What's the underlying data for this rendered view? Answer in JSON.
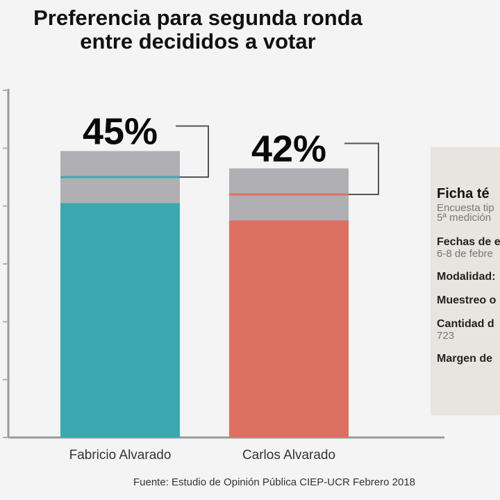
{
  "title_line1": "Preferencia para segunda ronda",
  "title_line2": "entre decididos a votar",
  "chart_data": {
    "type": "bar",
    "title": "Preferencia para segunda ronda entre decididos a votar",
    "categories": [
      "Fabricio Alvarado",
      "Carlos Alvarado"
    ],
    "values": [
      45,
      42
    ],
    "value_labels": [
      "45%",
      "42%"
    ],
    "ylim": [
      0,
      60
    ],
    "y_ticks": [
      0,
      10,
      20,
      30,
      40,
      50,
      60
    ],
    "show_tick_labels": false,
    "grid": false,
    "colors": {
      "Fabricio Alvarado": "#3aa9b0",
      "Carlos Alvarado": "#de7061",
      "error_band": "#b0b0b4",
      "bracket": "#555555"
    },
    "margin_of_error_band": 4.5
  },
  "source": "Fuente: Estudio de Opinión Pública CIEP-UCR Febrero 2018",
  "ficha": {
    "heading": "Ficha té",
    "lines": [
      {
        "kind": "line",
        "text": "Encuesta tip"
      },
      {
        "kind": "line",
        "text": "5ª medición"
      },
      {
        "kind": "label",
        "text": "Fechas de e"
      },
      {
        "kind": "line",
        "text": "6-8 de febre"
      },
      {
        "kind": "label",
        "text": "Modalidad:"
      },
      {
        "kind": "label",
        "text": "Muestreo o"
      },
      {
        "kind": "label",
        "text": "Cantidad d"
      },
      {
        "kind": "line",
        "text": "723"
      },
      {
        "kind": "label",
        "text": "Margen de"
      }
    ]
  }
}
